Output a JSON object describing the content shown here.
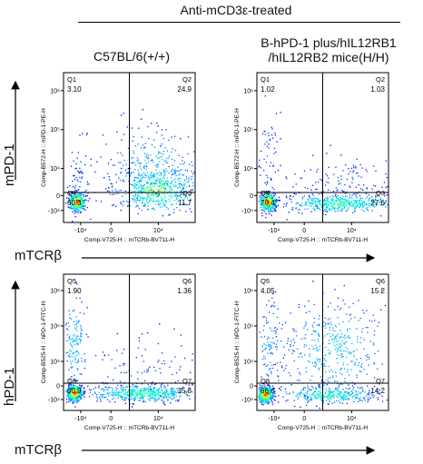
{
  "header": {
    "title": "Anti-mCD3ε-treated",
    "col_left": "C57BL/6(+/+)",
    "col_right_line1": "B-hPD-1 plus/hIL12RB1",
    "col_right_line2": "/hIL12RB2 mice(H/H)"
  },
  "axes": {
    "row_top_y": "mPD-1",
    "row_bottom_y": "hPD-1",
    "row_top_x": "mTCRβ",
    "row_bottom_x": "mTCRβ"
  },
  "colors": {
    "density_low": "#0000ff",
    "density_mid": "#00ffff",
    "density_high": "#ff0000",
    "gate": "#000000"
  },
  "chart_data": [
    {
      "type": "scatter",
      "panel": "top-left",
      "xlabel": "Comp-V725-H :: mTCRb-BV711-H",
      "ylabel": "Comp-B572-H :: mPD-1-PE-H",
      "xticks": [
        "-10⁴",
        "0",
        "10⁴"
      ],
      "yticks": [
        "-10⁴",
        "0",
        "10⁴",
        "10⁵",
        "10⁶"
      ],
      "quadrants": [
        {
          "name": "Q1",
          "value": "3.10"
        },
        {
          "name": "Q2",
          "value": "24.9"
        },
        {
          "name": "Q4",
          "value": "60.3"
        },
        {
          "name": "Q3",
          "value": "11.7"
        }
      ]
    },
    {
      "type": "scatter",
      "panel": "top-right",
      "xlabel": "Comp-V725-H :: mTCRb-BV711-H",
      "ylabel": "Comp-B572-H :: mPD-1-PE-H",
      "xticks": [
        "-10⁴",
        "0",
        "10⁴"
      ],
      "yticks": [
        "-10⁴",
        "0",
        "10⁴",
        "10⁵",
        "10⁶"
      ],
      "quadrants": [
        {
          "name": "Q1",
          "value": "1.02"
        },
        {
          "name": "Q2",
          "value": "1.03"
        },
        {
          "name": "Q4",
          "value": "70.4"
        },
        {
          "name": "Q3",
          "value": "27.6"
        }
      ]
    },
    {
      "type": "scatter",
      "panel": "bottom-left",
      "xlabel": "Comp-V725-H :: mTCRb-BV711-H",
      "ylabel": "Comp-B525-H :: hPD-1-FITC-H",
      "xticks": [
        "-10⁴",
        "0",
        "10⁴"
      ],
      "yticks": [
        "-10⁴",
        "0",
        "10⁴",
        "10⁵",
        "10⁶"
      ],
      "quadrants": [
        {
          "name": "Q5",
          "value": "1.90"
        },
        {
          "name": "Q6",
          "value": "1.36"
        },
        {
          "name": "Q8",
          "value": "60.9"
        },
        {
          "name": "Q7",
          "value": "35.8"
        }
      ]
    },
    {
      "type": "scatter",
      "panel": "bottom-right",
      "xlabel": "Comp-V725-H :: mTCRb-BV711-H",
      "ylabel": "Comp-B525-H :: hPD-1-FITC-H",
      "xticks": [
        "-10⁴",
        "0",
        "10⁴"
      ],
      "yticks": [
        "-10⁴",
        "0",
        "10⁴",
        "10⁵",
        "10⁶"
      ],
      "quadrants": [
        {
          "name": "Q5",
          "value": "4.05"
        },
        {
          "name": "Q6",
          "value": "15.2"
        },
        {
          "name": "Q8",
          "value": "66.6"
        },
        {
          "name": "Q7",
          "value": "14.2"
        }
      ]
    }
  ]
}
